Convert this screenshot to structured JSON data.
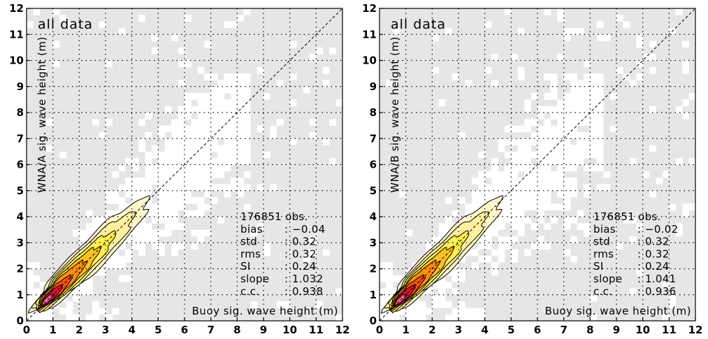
{
  "chart_data": [
    {
      "type": "heatmap",
      "title": "all data",
      "xlabel": "Buoy sig. wave height (m)",
      "ylabel": "WNA/A sig. wave height (m)",
      "xlim": [
        0,
        12
      ],
      "ylim": [
        0,
        12
      ],
      "x_ticks": [
        "0",
        "1",
        "2",
        "3",
        "4",
        "5",
        "6",
        "7",
        "8",
        "9",
        "10",
        "11",
        "12"
      ],
      "y_ticks": [
        "0",
        "1",
        "2",
        "3",
        "4",
        "5",
        "6",
        "7",
        "8",
        "9",
        "10",
        "11",
        "12"
      ],
      "grid": true,
      "stats": [
        {
          "label": "176851 obs.",
          "value": ""
        },
        {
          "label": "bias",
          "value": "−0.04"
        },
        {
          "label": "std",
          "value": "0.32"
        },
        {
          "label": "rms",
          "value": "0.32"
        },
        {
          "label": "SI",
          "value": "0.24"
        },
        {
          "label": "slope",
          "value": "1.032"
        },
        {
          "label": "c.c.",
          "value": "0.938"
        }
      ],
      "slope": 1.032,
      "correlation": 0.938
    },
    {
      "type": "heatmap",
      "title": "all data",
      "xlabel": "Buoy sig. wave height (m)",
      "ylabel": "WNA/B sig. wave height (m)",
      "xlim": [
        0,
        12
      ],
      "ylim": [
        0,
        12
      ],
      "x_ticks": [
        "0",
        "1",
        "2",
        "3",
        "4",
        "5",
        "6",
        "7",
        "8",
        "9",
        "10",
        "11",
        "12"
      ],
      "y_ticks": [
        "0",
        "1",
        "2",
        "3",
        "4",
        "5",
        "6",
        "7",
        "8",
        "9",
        "10",
        "11",
        "12"
      ],
      "grid": true,
      "stats": [
        {
          "label": "176851 obs.",
          "value": ""
        },
        {
          "label": "bias",
          "value": "−0.02"
        },
        {
          "label": "std",
          "value": "0.32"
        },
        {
          "label": "rms",
          "value": "0.32"
        },
        {
          "label": "SI",
          "value": "0.24"
        },
        {
          "label": "slope",
          "value": "1.041"
        },
        {
          "label": "c.c.",
          "value": "0.936"
        }
      ],
      "slope": 1.041,
      "correlation": 0.936
    }
  ],
  "colors": {
    "background": "#e6e6e6",
    "data_cells": "#ffffff",
    "contour_levels": [
      "#fff7c8",
      "#fff1a0",
      "#ffef50",
      "#ffc020",
      "#ff8e10",
      "#f05010",
      "#e01030",
      "#ff60a0"
    ],
    "contour_line": "#000000"
  }
}
